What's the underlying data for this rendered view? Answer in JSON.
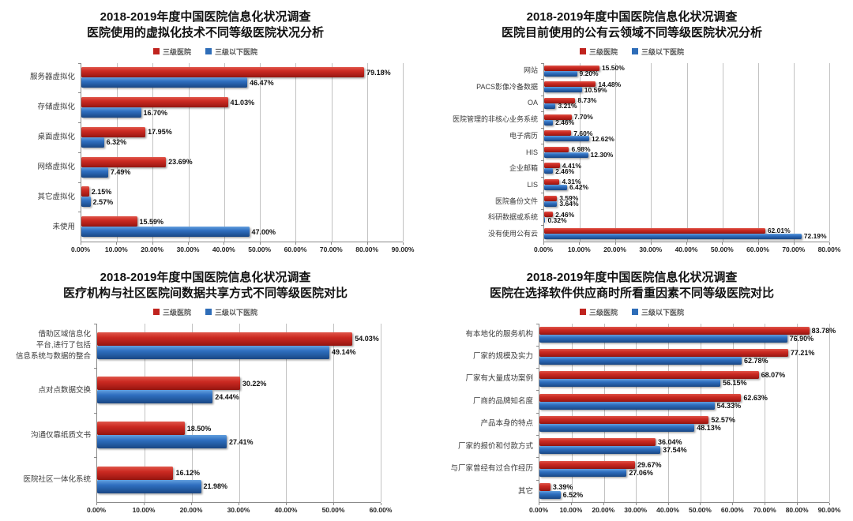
{
  "series_colors": {
    "tertiary": "#c0231e",
    "below_tertiary": "#2e6db8"
  },
  "chart_data": [
    {
      "type": "bar",
      "orientation": "horizontal",
      "title1": "2018-2019年度中国医院信息化状况调查",
      "title2": "医院使用的虚拟化技术不同等级医院状况分析",
      "legend_position": "top",
      "grid": true,
      "xlim": [
        0,
        90
      ],
      "xtick_step": 10,
      "categories": [
        "服务器虚拟化",
        "存储虚拟化",
        "桌面虚拟化",
        "网络虚拟化",
        "其它虚拟化",
        "未使用"
      ],
      "series": [
        {
          "name": "三级医院",
          "values": [
            79.18,
            41.03,
            17.95,
            23.69,
            2.15,
            15.59
          ]
        },
        {
          "name": "三级以下医院",
          "values": [
            46.47,
            16.7,
            6.32,
            7.49,
            2.57,
            47.0
          ]
        }
      ]
    },
    {
      "type": "bar",
      "orientation": "horizontal",
      "title1": "2018-2019年度中国医院信息化状况调查",
      "title2": "医院目前使用的公有云领域不同等级医院状况分析",
      "legend_position": "top",
      "grid": true,
      "xlim": [
        0,
        80
      ],
      "xtick_step": 10,
      "categories": [
        "网站",
        "PACS影像冷备数据",
        "OA",
        "医院管理的非核心业务系统",
        "电子病历",
        "HIS",
        "企业邮箱",
        "LIS",
        "医院备份文件",
        "科研数据或系统",
        "没有使用公有云"
      ],
      "series": [
        {
          "name": "三级医院",
          "values": [
            15.5,
            14.48,
            8.73,
            7.7,
            7.6,
            6.98,
            4.41,
            4.31,
            3.59,
            2.46,
            62.01
          ]
        },
        {
          "name": "三级以下医院",
          "values": [
            9.2,
            10.59,
            3.21,
            2.46,
            12.62,
            12.3,
            2.46,
            6.42,
            3.64,
            0.32,
            72.19
          ]
        }
      ]
    },
    {
      "type": "bar",
      "orientation": "horizontal",
      "title1": "2018-2019年度中国医院信息化状况调查",
      "title2": "医疗机构与社区医院间数据共享方式不同等级医院对比",
      "legend_position": "top",
      "grid": true,
      "xlim": [
        0,
        60
      ],
      "xtick_step": 10,
      "categories": [
        "借助区域信息化\n平台,进行了包括\n信息系统与数据的整合",
        "点对点数据交换",
        "沟通仅靠纸质文书",
        "医院社区一体化系统"
      ],
      "series": [
        {
          "name": "三级医院",
          "values": [
            54.03,
            30.22,
            18.5,
            16.12
          ]
        },
        {
          "name": "三级以下医院",
          "values": [
            49.14,
            24.44,
            27.41,
            21.98
          ]
        }
      ]
    },
    {
      "type": "bar",
      "orientation": "horizontal",
      "title1": "2018-2019年度中国医院信息化状况调查",
      "title2": "医院在选择软件供应商时所看重因素不同等级医院对比",
      "legend_position": "top",
      "grid": true,
      "xlim": [
        0,
        90
      ],
      "xtick_step": 10,
      "categories": [
        "有本地化的服务机构",
        "厂家的规模及实力",
        "厂家有大量成功案例",
        "厂商的品牌知名度",
        "产品本身的特点",
        "厂家的报价和付款方式",
        "与厂家曾经有过合作经历",
        "其它"
      ],
      "series": [
        {
          "name": "三级医院",
          "values": [
            83.78,
            77.21,
            68.07,
            62.63,
            52.57,
            36.04,
            29.67,
            3.39
          ]
        },
        {
          "name": "三级以下医院",
          "values": [
            76.9,
            62.78,
            56.15,
            54.33,
            48.13,
            37.54,
            27.06,
            6.52
          ]
        }
      ]
    }
  ]
}
